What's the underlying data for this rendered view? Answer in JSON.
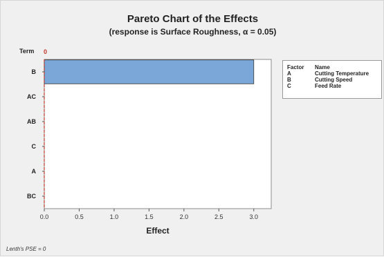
{
  "chart_data": {
    "type": "bar",
    "orientation": "horizontal",
    "title": "Pareto Chart of the Effects",
    "subtitle": "(response is Surface Roughness, α = 0.05)",
    "xlabel": "Effect",
    "ylabel": "Term",
    "categories": [
      "B",
      "AC",
      "AB",
      "C",
      "A",
      "BC"
    ],
    "values": [
      3.0,
      0.0,
      0.0,
      0.0,
      0.0,
      0.0
    ],
    "xlim": [
      0,
      3.25
    ],
    "xticks": [
      "0.0",
      "0.5",
      "1.0",
      "1.5",
      "2.0",
      "2.5",
      "3.0"
    ],
    "reference_line": {
      "value": 0,
      "label": "0",
      "color": "#c0392b"
    },
    "bar_color": "#7aa6d8",
    "grid": false,
    "legend": {
      "placement": "right",
      "headers": [
        "Factor",
        "Name"
      ],
      "rows": [
        {
          "factor": "A",
          "name": "Cutting Temperature"
        },
        {
          "factor": "B",
          "name": "Cutting Speed"
        },
        {
          "factor": "C",
          "name": "Feed Rate"
        }
      ]
    },
    "footnote": "Lenth's PSE = 0"
  }
}
